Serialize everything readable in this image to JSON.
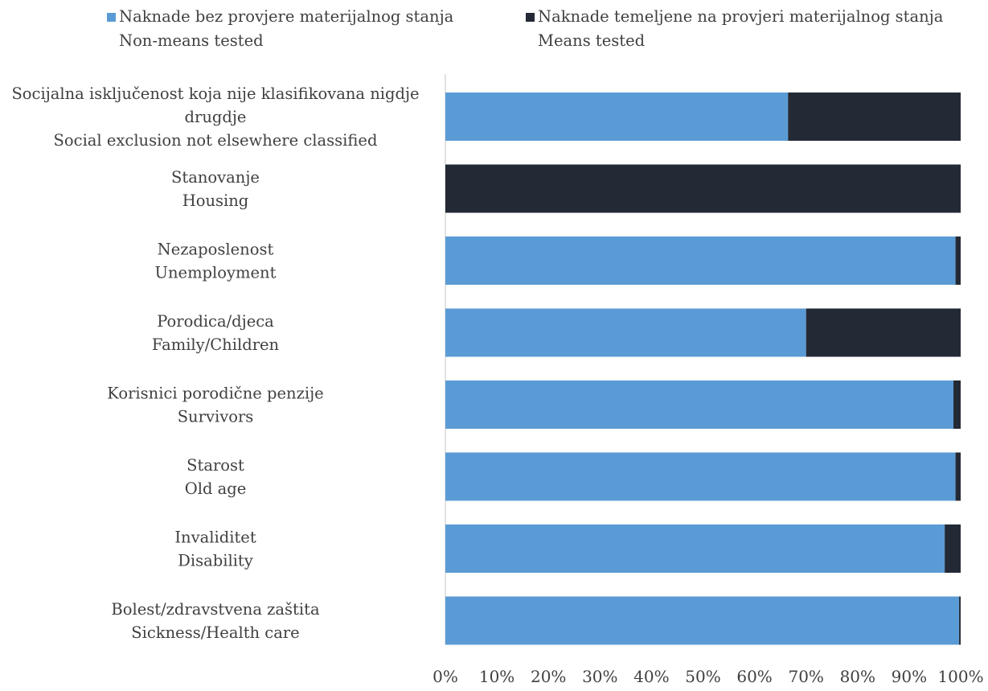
{
  "chart_data": {
    "type": "bar",
    "orientation": "horizontal",
    "stacked": "percent",
    "title": "",
    "xlabel": "",
    "ylabel": "",
    "xlim": [
      0,
      100
    ],
    "grid": false,
    "legend_position": "top",
    "categories": [
      [
        "Socijalna isključenost koja nije klasifikovana nigdje",
        "drugdje",
        "Social exclusion not elsewhere classified"
      ],
      [
        "Stanovanje",
        "Housing"
      ],
      [
        "Nezaposlenost",
        "Unemployment"
      ],
      [
        "Porodica/djeca",
        "Family/Children"
      ],
      [
        "Korisnici porodične penzije",
        "Survivors"
      ],
      [
        "Starost",
        "Old age"
      ],
      [
        "Invaliditet",
        "Disability"
      ],
      [
        "Bolest/zdravstvena zaštita",
        "Sickness/Health care"
      ]
    ],
    "series": [
      {
        "name": "Naknade bez provjere materijalnog stanja",
        "name_en": "Non-means tested",
        "color": "#5b9bd5",
        "values": [
          66.5,
          0,
          99.0,
          70.0,
          98.6,
          99.0,
          96.9,
          99.7
        ]
      },
      {
        "name": "Naknade temeljene na provjeri materijalnog stanja",
        "name_en": "Means tested",
        "color": "#232a35",
        "values": [
          33.5,
          100,
          1.0,
          30.0,
          1.4,
          1.0,
          3.1,
          0.3
        ]
      }
    ],
    "x_ticks": [
      "0%",
      "10%",
      "20%",
      "30%",
      "40%",
      "50%",
      "60%",
      "70%",
      "80%",
      "90%",
      "100%"
    ]
  }
}
